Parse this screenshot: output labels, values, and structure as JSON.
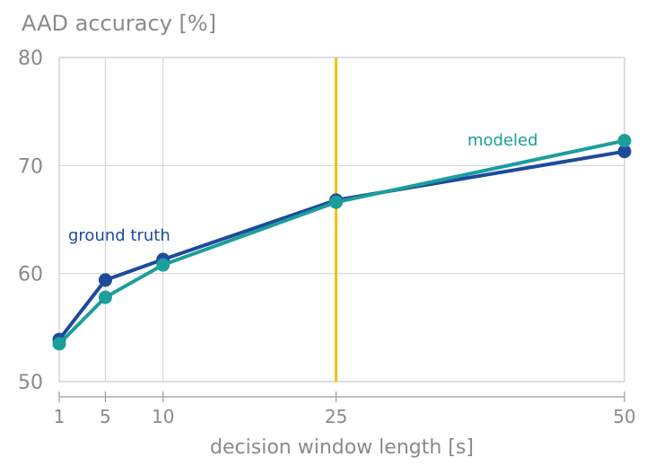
{
  "chart_data": {
    "type": "line",
    "title": "AAD accuracy [%]",
    "xlabel": "decision window length [s]",
    "ylabel": "AAD accuracy [%]",
    "xlim": [
      1,
      50
    ],
    "ylim": [
      50,
      80
    ],
    "xticks": [
      1,
      5,
      10,
      25,
      50
    ],
    "yticks": [
      50,
      60,
      70,
      80
    ],
    "x_gridlines": [
      5,
      10
    ],
    "y_gridlines": [
      60,
      70
    ],
    "vertical_marker": {
      "x": 25,
      "color": "#f5c000"
    },
    "series": [
      {
        "name": "ground truth",
        "color": "#1d4a9c",
        "x": [
          1,
          5,
          10,
          25,
          50
        ],
        "y": [
          53.9,
          59.4,
          61.3,
          66.8,
          71.3
        ]
      },
      {
        "name": "modeled",
        "color": "#1c9e9b",
        "x": [
          1,
          5,
          10,
          25,
          50
        ],
        "y": [
          53.5,
          57.8,
          60.8,
          66.6,
          72.3
        ]
      }
    ]
  }
}
